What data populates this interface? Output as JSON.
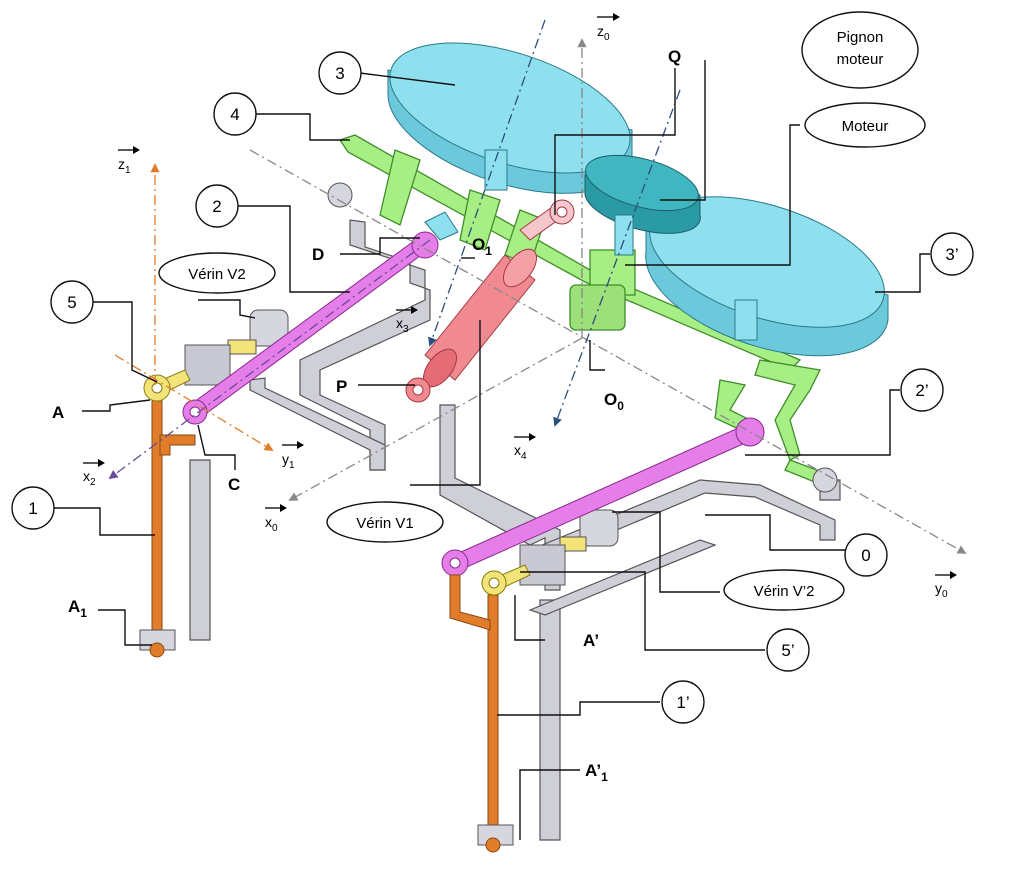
{
  "numbered_callouts": [
    "3",
    "4",
    "2",
    "5",
    "1",
    "3’",
    "2’",
    "0",
    "5’",
    "1’"
  ],
  "name_callouts": {
    "pignon_line1": "Pignon",
    "pignon_line2": "moteur",
    "moteur": "Moteur",
    "verin_v2": "Vérin V2",
    "verin_v1": "Vérin V1",
    "verin_v2_prime": "Vérin V’2"
  },
  "points": {
    "Q": "Q",
    "D": "D",
    "O1": "O",
    "O1_sub": "1",
    "P": "P",
    "O0": "O",
    "O0_sub": "0",
    "A": "A",
    "C": "C",
    "A1": "A",
    "A1_sub": "1",
    "A_prime": "A’",
    "A_prime_1": "A’",
    "A_prime_1_sub": "1"
  },
  "axes": {
    "z0": "z",
    "z0_sub": "0",
    "z1": "z",
    "z1_sub": "1",
    "x3": "x",
    "x3_sub": "3",
    "y1": "y",
    "y1_sub": "1",
    "x2": "x",
    "x2_sub": "2",
    "x0": "x",
    "x0_sub": "0",
    "x4": "x",
    "x4_sub": "4",
    "y0": "y",
    "y0_sub": "0"
  },
  "colors": {
    "disc": "#8fe0ee",
    "arm_green": "#a7ee84",
    "frame_grey": "#c9c9d3",
    "leg_orange": "#e07c2a",
    "rod_pink": "#e57ee8",
    "cylinder_red": "#f08a90",
    "motor_teal": "#3fb6c0"
  }
}
